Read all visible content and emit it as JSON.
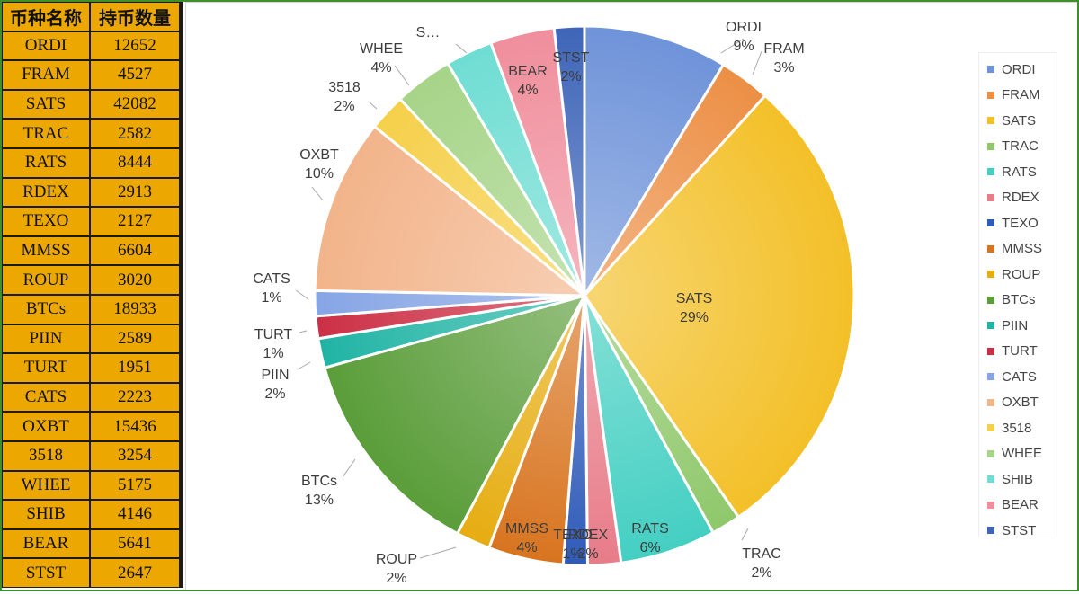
{
  "table": {
    "headers": [
      "币种名称",
      "持币数量"
    ],
    "rows": [
      [
        "ORDI",
        "12652"
      ],
      [
        "FRAM",
        "4527"
      ],
      [
        "SATS",
        "42082"
      ],
      [
        "TRAC",
        "2582"
      ],
      [
        "RATS",
        "8444"
      ],
      [
        "RDEX",
        "2913"
      ],
      [
        "TEXO",
        "2127"
      ],
      [
        "MMSS",
        "6604"
      ],
      [
        "ROUP",
        "3020"
      ],
      [
        "BTCs",
        "18933"
      ],
      [
        "PIIN",
        "2589"
      ],
      [
        "TURT",
        "1951"
      ],
      [
        "CATS",
        "2223"
      ],
      [
        "OXBT",
        "15436"
      ],
      [
        "3518",
        "3254"
      ],
      [
        "WHEE",
        "5175"
      ],
      [
        "SHIB",
        "4146"
      ],
      [
        "BEAR",
        "5641"
      ],
      [
        "STST",
        "2647"
      ]
    ]
  },
  "chart_data": {
    "type": "pie",
    "categories": [
      "ORDI",
      "FRAM",
      "SATS",
      "TRAC",
      "RATS",
      "RDEX",
      "TEXO",
      "MMSS",
      "ROUP",
      "BTCs",
      "PIIN",
      "TURT",
      "CATS",
      "OXBT",
      "3518",
      "WHEE",
      "SHIB",
      "BEAR",
      "STST"
    ],
    "values": [
      12652,
      4527,
      42082,
      2582,
      8444,
      2913,
      2127,
      6604,
      3020,
      18933,
      2589,
      1951,
      2223,
      15436,
      3254,
      5175,
      4146,
      5641,
      2647
    ],
    "data_labels": [
      {
        "name": "ORDI",
        "pct": "9%"
      },
      {
        "name": "FRAM",
        "pct": "3%"
      },
      {
        "name": "SATS",
        "pct": "29%"
      },
      {
        "name": "TRAC",
        "pct": "2%"
      },
      {
        "name": "RATS",
        "pct": "6%"
      },
      {
        "name": "RDEX",
        "pct": "2%"
      },
      {
        "name": "TEXO",
        "pct": "1%"
      },
      {
        "name": "MMSS",
        "pct": "4%"
      },
      {
        "name": "ROUP",
        "pct": "2%"
      },
      {
        "name": "BTCs",
        "pct": "13%"
      },
      {
        "name": "PIIN",
        "pct": "2%"
      },
      {
        "name": "TURT",
        "pct": "1%"
      },
      {
        "name": "CATS",
        "pct": "1%"
      },
      {
        "name": "OXBT",
        "pct": "10%"
      },
      {
        "name": "3518",
        "pct": "2%"
      },
      {
        "name": "WHEE",
        "pct": "4%"
      },
      {
        "name": "S…",
        "pct": ""
      },
      {
        "name": "BEAR",
        "pct": "4%"
      },
      {
        "name": "STST",
        "pct": "2%"
      }
    ],
    "colors": [
      "#6f93d9",
      "#ec8f45",
      "#f3c028",
      "#8fc86b",
      "#44cfc2",
      "#e87c89",
      "#2f5bb8",
      "#d8741f",
      "#e6ad11",
      "#5a9d39",
      "#20b4a4",
      "#cc2f45",
      "#86a5e5",
      "#f2b48a",
      "#f5d04a",
      "#a6d488",
      "#6fddd3",
      "#f08e9c",
      "#3e65b8"
    ],
    "legend_position": "right",
    "legend": [
      "ORDI",
      "FRAM",
      "SATS",
      "TRAC",
      "RATS",
      "RDEX",
      "TEXO",
      "MMSS",
      "ROUP",
      "BTCs",
      "PIIN",
      "TURT",
      "CATS",
      "OXBT",
      "3518",
      "WHEE",
      "SHIB",
      "BEAR",
      "STST"
    ]
  }
}
